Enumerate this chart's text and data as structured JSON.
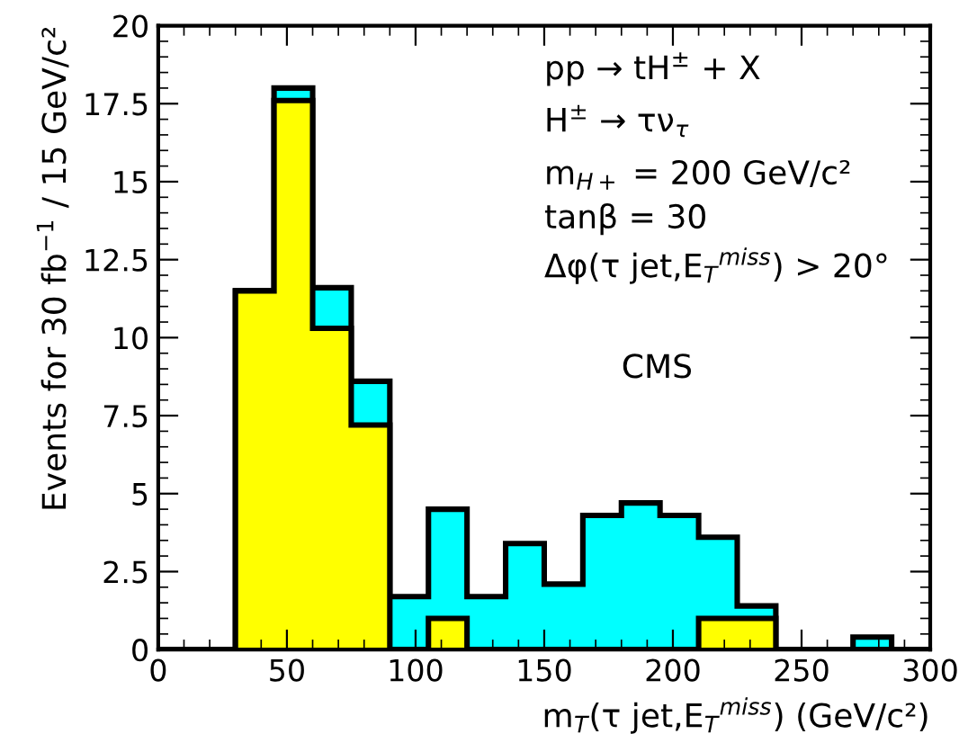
{
  "chart_data": {
    "type": "histogram",
    "xlabel": "m$_{T}$(τ jet,E$_{T}$$^{miss}$) (GeV/c²)",
    "ylabel": "Events for 30 fb$^{−1}$ / 15 GeV/c²",
    "bins": [
      0,
      15,
      30,
      45,
      60,
      75,
      90,
      105,
      120,
      135,
      150,
      165,
      180,
      195,
      210,
      225,
      240,
      255,
      270,
      285,
      300
    ],
    "series": [
      {
        "color": "#00ffff",
        "values": [
          0,
          0,
          11.5,
          18.0,
          11.6,
          8.6,
          1.7,
          4.5,
          1.7,
          3.4,
          2.1,
          4.3,
          4.7,
          4.3,
          3.6,
          1.4,
          0,
          0,
          0.4,
          0
        ]
      },
      {
        "color": "#ffff00",
        "values": [
          0,
          0,
          11.5,
          17.6,
          10.3,
          7.2,
          0,
          1.0,
          0,
          0,
          0,
          0,
          0,
          0,
          1.0,
          1.0,
          0,
          0,
          0,
          0
        ]
      }
    ],
    "xlim": [
      0,
      300
    ],
    "xticks": [
      0,
      50,
      100,
      150,
      200,
      250,
      300
    ],
    "ylim": [
      0,
      20
    ],
    "yticks": [
      0,
      2.5,
      5,
      7.5,
      10,
      12.5,
      15,
      17.5,
      20
    ],
    "grid": false,
    "legend": false,
    "annotations": [
      "pp → tH$^{±}$ + X",
      "H$^{±}$ → τν$_{τ}$",
      "m$_{H+}$ = 200 GeV/c²",
      "tanβ = 30",
      "Δφ(τ jet,E$_{T}$$^{miss}$) > 20°",
      "CMS"
    ]
  }
}
